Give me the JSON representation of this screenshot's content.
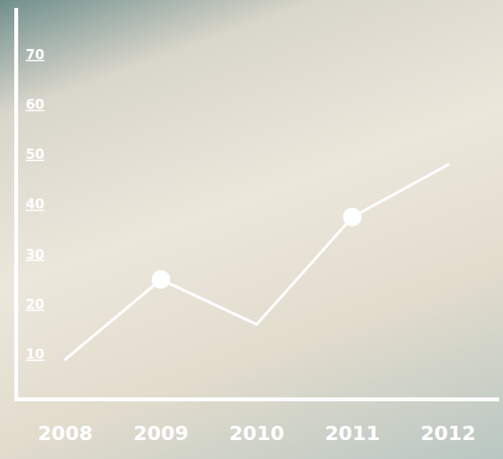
{
  "chart_data": {
    "type": "line",
    "categories": [
      "2008",
      "2009",
      "2010",
      "2011",
      "2012"
    ],
    "series": [
      {
        "type": "line",
        "color": "#ffffff",
        "values": [
          9,
          25,
          16,
          37.5,
          48
        ]
      },
      {
        "type": "scatter",
        "color": "#ffffff",
        "marker": "circle",
        "values": [
          null,
          25,
          null,
          37.5,
          null
        ]
      }
    ],
    "ylim": [
      1,
      79
    ],
    "yticks": [
      10,
      20,
      30,
      40,
      50,
      60,
      70
    ],
    "grid": false
  }
}
